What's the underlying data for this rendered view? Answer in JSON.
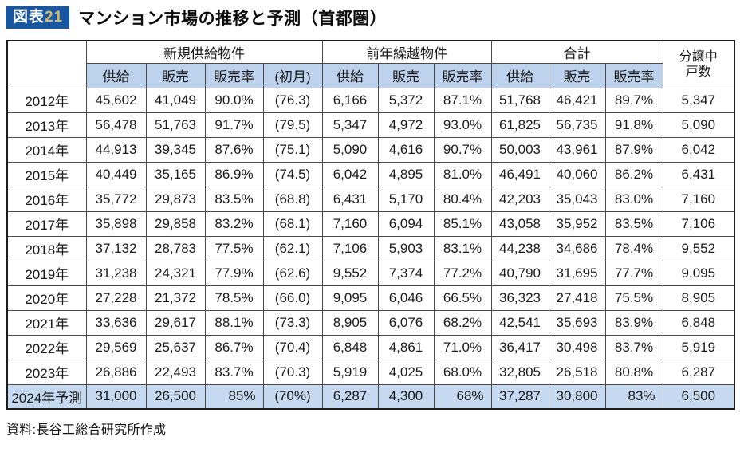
{
  "figure": {
    "badge": {
      "prefix": "図表",
      "number": "21"
    },
    "title": "マンション市場の推移と予測（首都圏）",
    "source": "資料:長谷工総合研究所作成"
  },
  "chart_data": {
    "type": "table",
    "title": "マンション市場の推移と予測（首都圏）",
    "column_groups": [
      {
        "label": "新規供給物件",
        "columns": [
          "供給",
          "販売",
          "販売率",
          "(初月)"
        ]
      },
      {
        "label": "前年繰越物件",
        "columns": [
          "供給",
          "販売",
          "販売率"
        ]
      },
      {
        "label": "合計",
        "columns": [
          "供給",
          "販売",
          "販売率"
        ]
      }
    ],
    "sub_headers": [
      "供給",
      "販売",
      "販売率",
      "(初月)",
      "供給",
      "販売",
      "販売率",
      "供給",
      "販売",
      "販売率"
    ],
    "last_column_header": {
      "line1": "分譲中",
      "line2": "戸数"
    },
    "rows": [
      {
        "year": "2012年",
        "values": [
          "45,602",
          "41,049",
          "90.0%",
          "(76.3)",
          "6,166",
          "5,372",
          "87.1%",
          "51,768",
          "46,421",
          "89.7%",
          "5,347"
        ],
        "highlight": false
      },
      {
        "year": "2013年",
        "values": [
          "56,478",
          "51,763",
          "91.7%",
          "(79.5)",
          "5,347",
          "4,972",
          "93.0%",
          "61,825",
          "56,735",
          "91.8%",
          "5,090"
        ],
        "highlight": false
      },
      {
        "year": "2014年",
        "values": [
          "44,913",
          "39,345",
          "87.6%",
          "(75.1)",
          "5,090",
          "4,616",
          "90.7%",
          "50,003",
          "43,961",
          "87.9%",
          "6,042"
        ],
        "highlight": false
      },
      {
        "year": "2015年",
        "values": [
          "40,449",
          "35,165",
          "86.9%",
          "(74.5)",
          "6,042",
          "4,895",
          "81.0%",
          "46,491",
          "40,060",
          "86.2%",
          "6,431"
        ],
        "highlight": false
      },
      {
        "year": "2016年",
        "values": [
          "35,772",
          "29,873",
          "83.5%",
          "(68.8)",
          "6,431",
          "5,170",
          "80.4%",
          "42,203",
          "35,043",
          "83.0%",
          "7,160"
        ],
        "highlight": false
      },
      {
        "year": "2017年",
        "values": [
          "35,898",
          "29,858",
          "83.2%",
          "(68.1)",
          "7,160",
          "6,094",
          "85.1%",
          "43,058",
          "35,952",
          "83.5%",
          "7,106"
        ],
        "highlight": false
      },
      {
        "year": "2018年",
        "values": [
          "37,132",
          "28,783",
          "77.5%",
          "(62.1)",
          "7,106",
          "5,903",
          "83.1%",
          "44,238",
          "34,686",
          "78.4%",
          "9,552"
        ],
        "highlight": false
      },
      {
        "year": "2019年",
        "values": [
          "31,238",
          "24,321",
          "77.9%",
          "(62.6)",
          "9,552",
          "7,374",
          "77.2%",
          "40,790",
          "31,695",
          "77.7%",
          "9,095"
        ],
        "highlight": false
      },
      {
        "year": "2020年",
        "values": [
          "27,228",
          "21,372",
          "78.5%",
          "(66.0)",
          "9,095",
          "6,046",
          "66.5%",
          "36,323",
          "27,418",
          "75.5%",
          "8,905"
        ],
        "highlight": false
      },
      {
        "year": "2021年",
        "values": [
          "33,636",
          "29,617",
          "88.1%",
          "(73.3)",
          "8,905",
          "6,076",
          "68.2%",
          "42,541",
          "35,693",
          "83.9%",
          "6,848"
        ],
        "highlight": false
      },
      {
        "year": "2022年",
        "values": [
          "29,569",
          "25,637",
          "86.7%",
          "(70.4)",
          "6,848",
          "4,861",
          "71.0%",
          "36,417",
          "30,498",
          "83.7%",
          "5,919"
        ],
        "highlight": false
      },
      {
        "year": "2023年",
        "values": [
          "26,886",
          "22,493",
          "83.7%",
          "(70.3)",
          "5,919",
          "4,025",
          "68.0%",
          "32,805",
          "26,518",
          "80.8%",
          "6,287"
        ],
        "highlight": false
      },
      {
        "year": "2024年予測",
        "values": [
          "31,000",
          "26,500",
          "85%",
          "(70%)",
          "6,287",
          "4,300",
          "68%",
          "37,287",
          "30,800",
          "83%",
          "6,500"
        ],
        "highlight": true
      }
    ]
  },
  "colors": {
    "accent_blue": "#1656a3",
    "badge_number_gold": "#d9ba62",
    "header_fill": "#bdd2ec",
    "forecast_row_fill": "#c5d9f1"
  }
}
